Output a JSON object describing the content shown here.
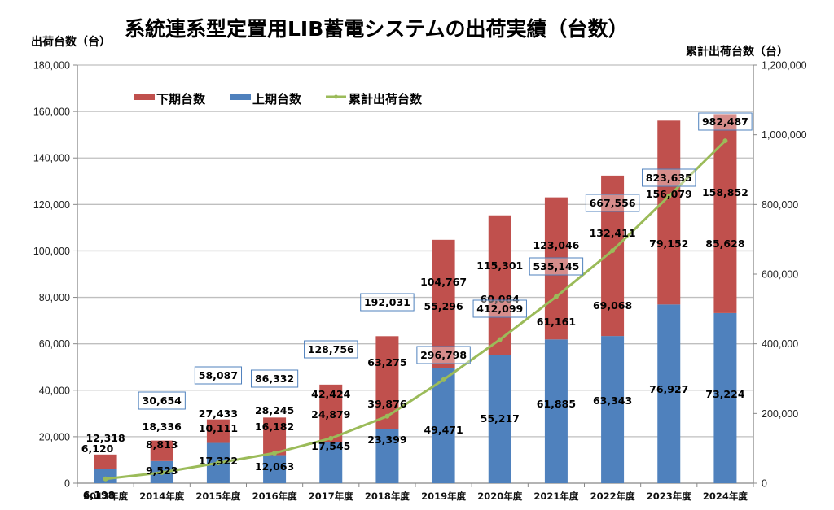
{
  "chart_data": {
    "type": "bar",
    "subtype": "stacked-bar-with-line",
    "title": "系統連系型定置用LIB蓄電システムの出荷実績（台数）",
    "ylabel": "出荷台数（台）",
    "y2label": "累計出荷台数（台）",
    "ylim": [
      0,
      180000
    ],
    "y2lim": [
      0,
      1200000
    ],
    "yticks": [
      "0",
      "20,000",
      "40,000",
      "60,000",
      "80,000",
      "100,000",
      "120,000",
      "140,000",
      "160,000",
      "180,000"
    ],
    "y2ticks": [
      "0",
      "200,000",
      "400,000",
      "600,000",
      "800,000",
      "1,000,000",
      "1,200,000"
    ],
    "grid": true,
    "legend_position": "top-left",
    "categories": [
      "2013年度",
      "2014年度",
      "2015年度",
      "2016年度",
      "2017年度",
      "2018年度",
      "2019年度",
      "2020年度",
      "2021年度",
      "2022年度",
      "2023年度",
      "2024年度"
    ],
    "series": [
      {
        "name": "下期台数",
        "kind": "bar",
        "stack_position": "top",
        "color": "#c0504d",
        "values": [
          6120,
          8813,
          10111,
          16182,
          24879,
          39876,
          55296,
          60084,
          61161,
          69068,
          79152,
          85628
        ],
        "labels": [
          "6,120",
          "8,813",
          "10,111",
          "16,182",
          "24,879",
          "39,876",
          "55,296",
          "60,084",
          "61,161",
          "69,068",
          "79,152",
          "85,628"
        ]
      },
      {
        "name": "上期台数",
        "kind": "bar",
        "stack_position": "bottom",
        "color": "#4f81bd",
        "values": [
          6198,
          9523,
          17322,
          12063,
          17545,
          23399,
          49471,
          55217,
          61885,
          63343,
          76927,
          73224
        ],
        "labels": [
          "6,198",
          "9,523",
          "17,322",
          "12,063",
          "17,545",
          "23,399",
          "49,471",
          "55,217",
          "61,885",
          "63,343",
          "76,927",
          "73,224"
        ]
      },
      {
        "name": "累計出荷台数",
        "kind": "line",
        "axis": "right",
        "color": "#9bbb59",
        "values": [
          12318,
          30654,
          58087,
          86332,
          128756,
          192031,
          296798,
          412099,
          535145,
          667556,
          823635,
          982487
        ],
        "labels": [
          "12,318",
          "30,654",
          "58,087",
          "86,332",
          "128,756",
          "192,031",
          "296,798",
          "412,099",
          "535,145",
          "667,556",
          "823,635",
          "982,487"
        ]
      }
    ],
    "totals": {
      "values": [
        12318,
        18336,
        27433,
        28245,
        42424,
        63275,
        104767,
        115301,
        123046,
        132411,
        156079,
        158852
      ],
      "labels": [
        "12,318",
        "18,336",
        "27,433",
        "28,245",
        "42,424",
        "63,275",
        "104,767",
        "115,301",
        "123,046",
        "132,411",
        "156,079",
        "158,852"
      ]
    },
    "legend": [
      "下期台数",
      "上期台数",
      "累計出荷台数"
    ]
  },
  "colors": {
    "lower_half": "#c0504d",
    "upper_half": "#4f81bd",
    "cumulative": "#9bbb59",
    "gridline": "#bfbfbf",
    "box_border": "#4f81bd"
  }
}
